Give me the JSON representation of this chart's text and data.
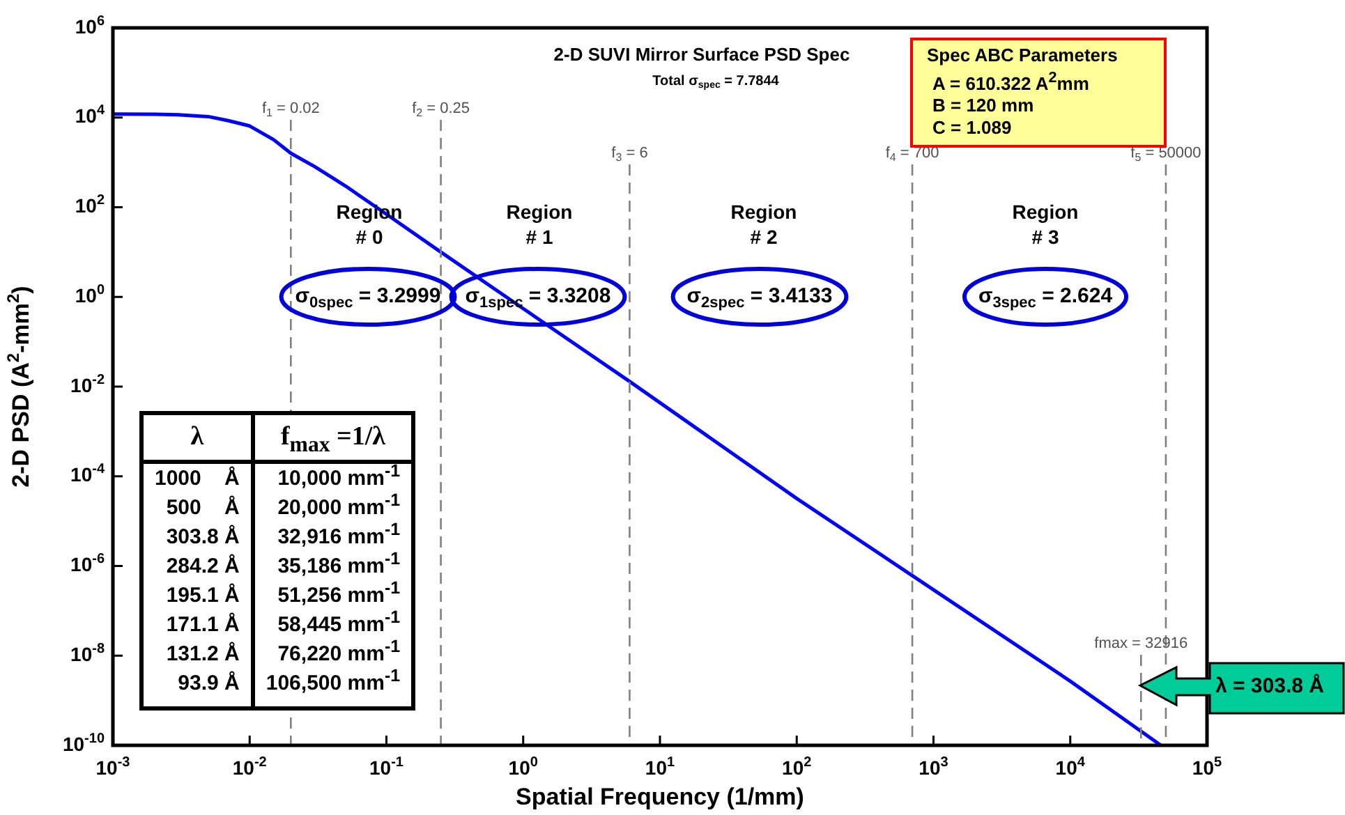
{
  "chart_data": {
    "type": "line",
    "title": "2-D SUVI Mirror Surface PSD Spec",
    "subtitle": "Total σ$_{spec}$ = 7.7844",
    "xlabel": "Spatial Frequency (1/mm)",
    "ylabel": "2-D PSD (A$^{2}$-mm$^{2}$)",
    "log": "xy",
    "xlim": [
      0.001,
      100000
    ],
    "ylim": [
      1e-10,
      1000000
    ],
    "xticks": [
      {
        "value": 0.001,
        "label": "10$^{-3}$"
      },
      {
        "value": 0.01,
        "label": "10$^{-2}$"
      },
      {
        "value": 0.1,
        "label": "10$^{-1}$"
      },
      {
        "value": 1,
        "label": "10$^{0}$"
      },
      {
        "value": 10,
        "label": "10$^{1}$"
      },
      {
        "value": 100,
        "label": "10$^{2}$"
      },
      {
        "value": 1000,
        "label": "10$^{3}$"
      },
      {
        "value": 10000,
        "label": "10$^{4}$"
      },
      {
        "value": 100000,
        "label": "10$^{5}$"
      }
    ],
    "yticks": [
      {
        "value": 1e-10,
        "label": "10$^{-10}$"
      },
      {
        "value": 1e-08,
        "label": "10$^{-8}$"
      },
      {
        "value": 1e-06,
        "label": "10$^{-6}$"
      },
      {
        "value": 0.0001,
        "label": "10$^{-4}$"
      },
      {
        "value": 0.01,
        "label": "10$^{-2}$"
      },
      {
        "value": 1,
        "label": "10$^{0}$"
      },
      {
        "value": 100,
        "label": "10$^{2}$"
      },
      {
        "value": 10000,
        "label": "10$^{4}$"
      },
      {
        "value": 1000000,
        "label": "10$^{6}$"
      }
    ],
    "x": [
      0.001,
      0.002,
      0.003,
      0.005,
      0.007,
      0.01,
      0.015,
      0.02,
      0.03,
      0.05,
      0.1,
      0.25,
      1,
      6,
      100,
      700,
      10000,
      46000
    ],
    "series": [
      {
        "color": "#0000ff",
        "values": [
          12000,
          11800,
          11500,
          10500,
          8500,
          6500,
          3200,
          1600,
          800,
          300,
          70,
          10,
          0.55,
          0.013,
          3.2e-05,
          6.1e-07,
          2.7e-09,
          1e-10
        ]
      }
    ],
    "line_style": "solid",
    "ref_lines": [
      {
        "axis": "x",
        "value": 0.02,
        "label": "f$_{1}$ = 0.02",
        "color": "#808080",
        "line_style": "dashed"
      },
      {
        "axis": "x",
        "value": 0.25,
        "label": "f$_{2}$ = 0.25",
        "color": "#808080",
        "line_style": "dashed"
      },
      {
        "axis": "x",
        "value": 6,
        "label": "f$_{3}$ = 6",
        "color": "#808080",
        "line_style": "dashed"
      },
      {
        "axis": "x",
        "value": 700,
        "label": "f$_{4}$ = 700",
        "color": "#808080",
        "line_style": "dashed"
      },
      {
        "axis": "x",
        "value": 50000,
        "label": "f$_{5}$ = 50000",
        "color": "#808080",
        "line_style": "dashed"
      },
      {
        "axis": "x",
        "value": 32916,
        "label": "fmax = 32916",
        "color": "#808080",
        "line_style": "dashed"
      }
    ],
    "annotations": [
      "Region\n# 0",
      "Region\n# 1",
      "Region\n# 2",
      "Region\n# 3",
      "σ$_{0spec}$ = 3.2999",
      "σ$_{1spec}$ = 3.3208",
      "σ$_{2spec}$ = 3.4133",
      "σ$_{3spec}$ = 2.624",
      "Spec ABC Parameters",
      "A = 610.322 A$^{2}$mm",
      "B = 120 mm",
      "C = 1.089",
      "λ = 303.8 Å",
      "λ",
      "f$_{max}$ =1/λ",
      "1000    Å",
      "10,000 mm$^{-1}$",
      "500    Å",
      "20,000 mm$^{-1}$",
      "303.8 Å",
      "32,916 mm$^{-1}$",
      "284.2 Å",
      "35,186 mm$^{-1}$",
      "195.1 Å",
      "51,256 mm$^{-1}$",
      "171.1 Å",
      "58,445 mm$^{-1}$",
      "131.2 Å",
      "76,220 mm$^{-1}$",
      "93.9 Å",
      "106,500 mm$^{-1}$"
    ]
  }
}
